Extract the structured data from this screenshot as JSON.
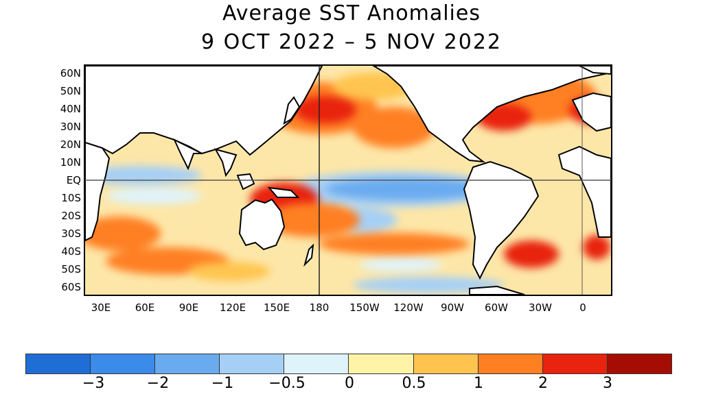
{
  "title_line1": "Average SST Anomalies",
  "title_line2": "9 OCT 2022 – 5 NOV 2022",
  "map": {
    "lat_labels": [
      "60N",
      "50N",
      "40N",
      "30N",
      "20N",
      "10N",
      "EQ",
      "10S",
      "20S",
      "30S",
      "40S",
      "50S",
      "60S"
    ],
    "lon_labels": [
      "30E",
      "60E",
      "90E",
      "120E",
      "150E",
      "180",
      "150W",
      "120W",
      "90W",
      "60W",
      "30W",
      "0"
    ],
    "lat_range": [
      -65,
      65
    ],
    "lon_range": [
      20,
      380
    ],
    "reference_lines": {
      "equator": 0,
      "dateline": "180"
    }
  },
  "colorbar": {
    "colors": [
      "#1f6ed6",
      "#3b8bea",
      "#6aabf0",
      "#a6cff5",
      "#dff3fb",
      "#fff3a8",
      "#ffc44f",
      "#ff7f23",
      "#e8230e",
      "#a50d04"
    ],
    "tick_labels": [
      "−3",
      "−2",
      "−1",
      "−0.5",
      "0",
      "0.5",
      "1",
      "2",
      "3"
    ]
  }
}
